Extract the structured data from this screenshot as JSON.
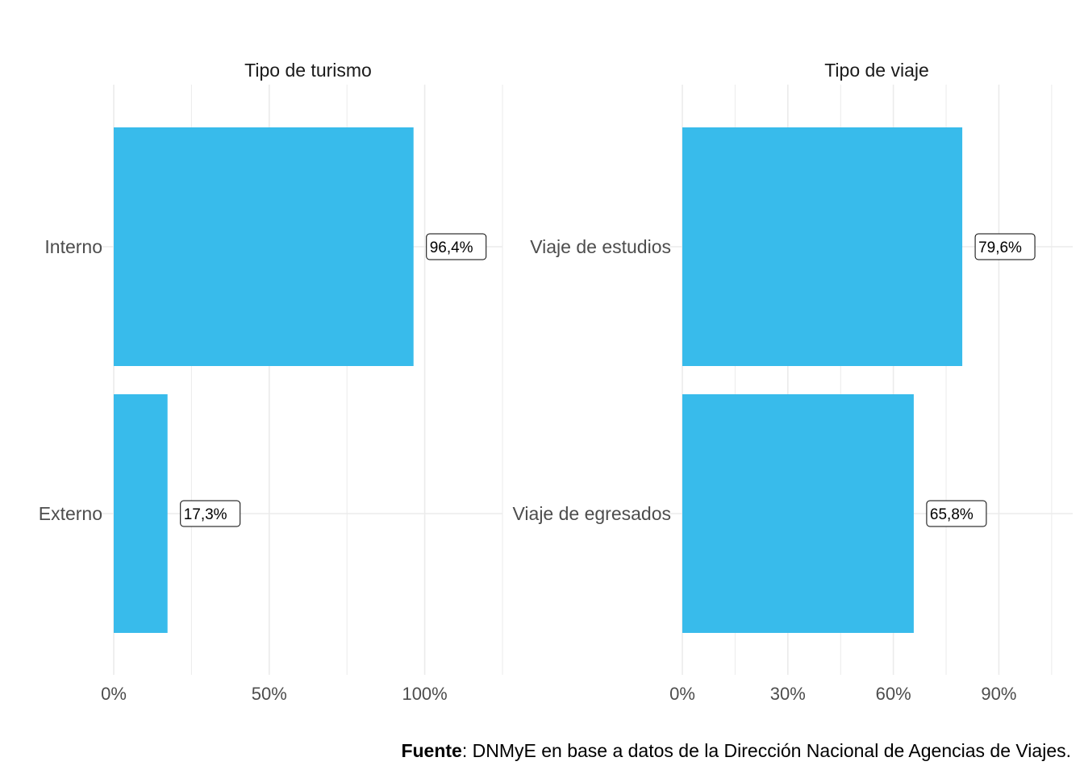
{
  "chart_data": [
    {
      "type": "bar",
      "orientation": "horizontal",
      "title": "Tipo de turismo",
      "categories": [
        "Interno",
        "Externo"
      ],
      "values": [
        96.4,
        17.3
      ],
      "value_labels": [
        "96,4%",
        "17,3%"
      ],
      "xlim": [
        0,
        125
      ],
      "xticks": [
        0,
        50,
        100
      ],
      "xtick_labels": [
        "0%",
        "50%",
        "100%"
      ],
      "grid": true,
      "legend": "none"
    },
    {
      "type": "bar",
      "orientation": "horizontal",
      "title": "Tipo de viaje",
      "categories": [
        "Viaje de estudios",
        "Viaje de egresados"
      ],
      "values": [
        79.6,
        65.8
      ],
      "value_labels": [
        "79,6%",
        "65,8%"
      ],
      "xlim": [
        0,
        111
      ],
      "xticks": [
        0,
        30,
        60,
        90
      ],
      "xtick_labels": [
        "0%",
        "30%",
        "60%",
        "90%"
      ],
      "grid": true,
      "legend": "none"
    }
  ],
  "colors": {
    "bar": "#38BBEB",
    "grid": "#EBEBEB",
    "axis_text": "#4D4D4D"
  },
  "caption": {
    "bold": "Fuente",
    "text": ": DNMyE en base a datos de la Dirección Nacional de Agencias de Viajes."
  }
}
